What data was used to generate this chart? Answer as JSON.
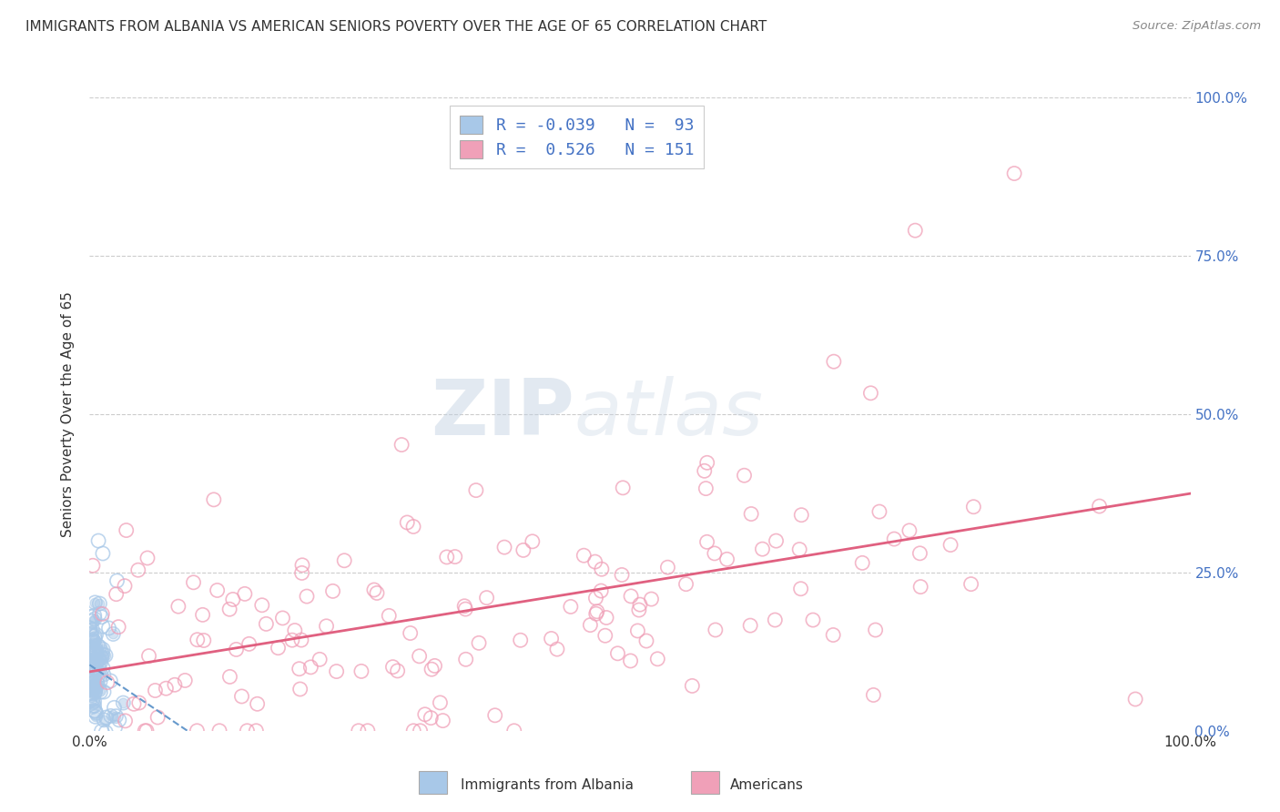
{
  "title": "IMMIGRANTS FROM ALBANIA VS AMERICAN SENIORS POVERTY OVER THE AGE OF 65 CORRELATION CHART",
  "source": "Source: ZipAtlas.com",
  "ylabel": "Seniors Poverty Over the Age of 65",
  "legend_label1": "Immigrants from Albania",
  "legend_label2": "Americans",
  "R1": -0.039,
  "N1": 93,
  "R2": 0.526,
  "N2": 151,
  "color_blue": "#a8c8e8",
  "color_pink": "#f0a0b8",
  "color_blue_line": "#6699cc",
  "color_pink_line": "#e06080",
  "watermark_color": "#c8d8e8",
  "bg_color": "#ffffff",
  "grid_color": "#cccccc",
  "right_axis_color": "#4472c4",
  "title_color": "#333333",
  "source_color": "#888888"
}
